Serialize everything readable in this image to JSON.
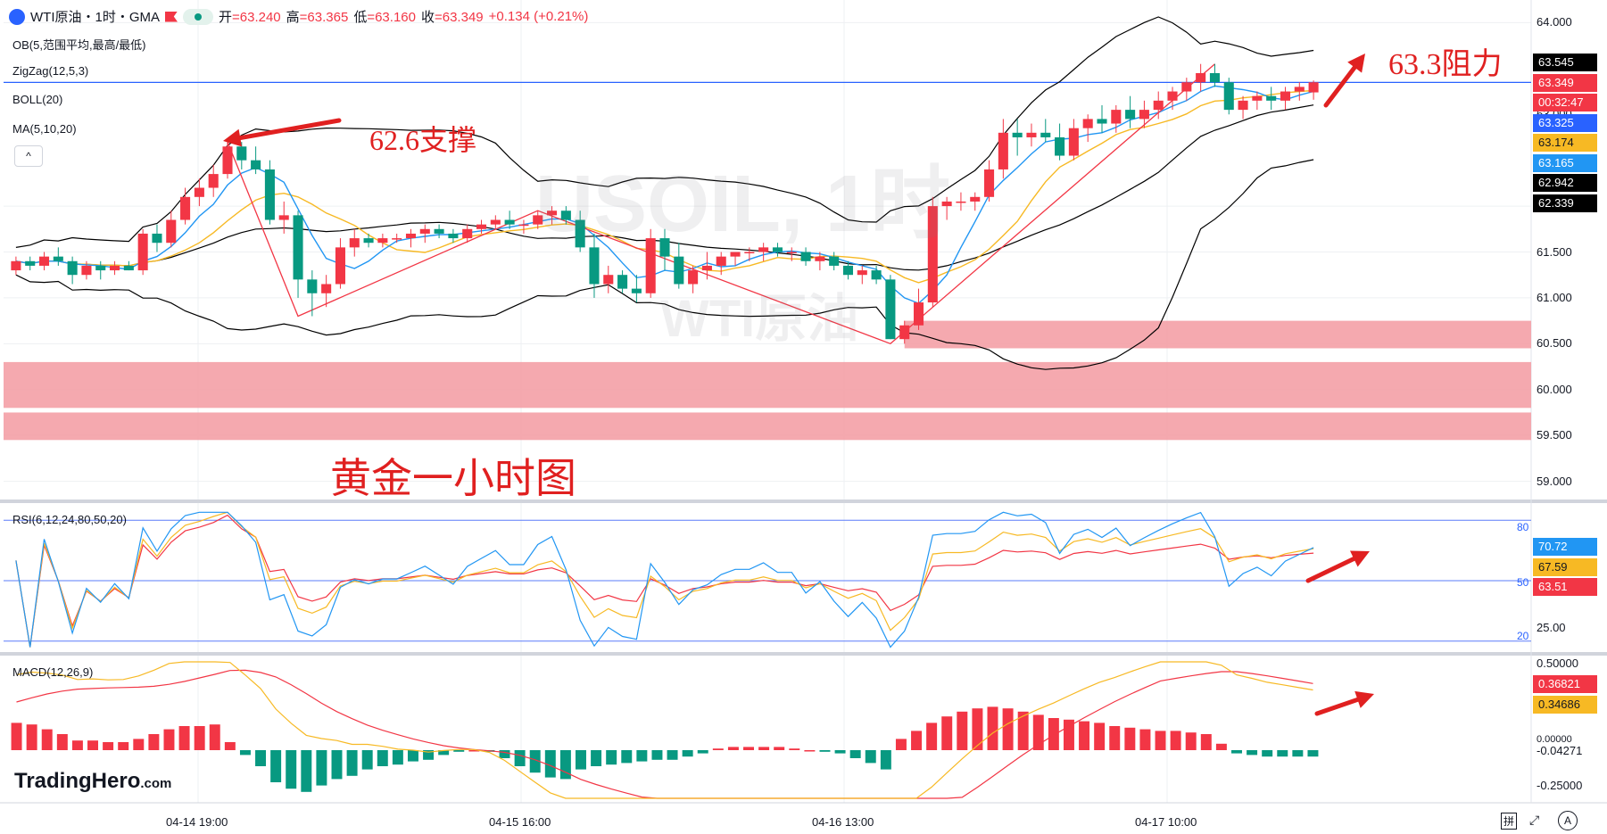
{
  "header": {
    "symbol": "WTI原油・1时・GMA",
    "open_label": "开",
    "open": "=63.240",
    "high_label": "高",
    "high": "=63.365",
    "low_label": "低",
    "low": "=63.160",
    "close_label": "收",
    "close": "=63.349",
    "change": "+0.134 (+0.21%)"
  },
  "indicators": {
    "ob": "OB(5,范围平均,最高/最低)",
    "zigzag": "ZigZag(12,5,3)",
    "boll": "BOLL(20)",
    "ma": "MA(5,10,20)",
    "rsi": "RSI(6,12,24,80,50,20)",
    "macd": "MACD(12,26,9)",
    "collapse_glyph": "^"
  },
  "annotations": {
    "support": "62.6支撑",
    "resistance": "63.3阻力",
    "chart_note": "黄金一小时图"
  },
  "watermark": {
    "main": "USOIL, 1时",
    "sub": "WTI原油"
  },
  "brand": {
    "name": "TradingHero",
    "suffix": ".com"
  },
  "price_axis": [
    "64.000",
    "63.000",
    "62.500",
    "62.000",
    "61.500",
    "61.000",
    "60.500",
    "60.000",
    "59.500",
    "59.000"
  ],
  "price_tags": [
    {
      "value": "63.545",
      "bg": "#000000",
      "fg": "#ffffff"
    },
    {
      "value": "63.349",
      "bg": "#f23645",
      "fg": "#ffffff"
    },
    {
      "value": "00:32:47",
      "bg": "#f23645",
      "fg": "#ffffff"
    },
    {
      "value": "63.325",
      "bg": "#2962ff",
      "fg": "#ffffff"
    },
    {
      "value": "63.174",
      "bg": "#f7b924",
      "fg": "#131722"
    },
    {
      "value": "63.165",
      "bg": "#2196f3",
      "fg": "#ffffff"
    },
    {
      "value": "62.942",
      "bg": "#000000",
      "fg": "#ffffff"
    },
    {
      "value": "62.339",
      "bg": "#000000",
      "fg": "#ffffff"
    }
  ],
  "rsi_axis": {
    "upper": "80",
    "mid": "50",
    "lower": "20",
    "tick": "25.00"
  },
  "rsi_tags": [
    {
      "value": "70.72",
      "bg": "#2196f3",
      "fg": "#ffffff"
    },
    {
      "value": "67.59",
      "bg": "#f7b924",
      "fg": "#131722"
    },
    {
      "value": "63.51",
      "bg": "#f23645",
      "fg": "#ffffff"
    }
  ],
  "macd_axis": {
    "top": "0.50000",
    "zero": "0.00000",
    "bottom": "-0.25000"
  },
  "macd_tags": [
    {
      "value": "0.36821",
      "bg": "#f23645",
      "fg": "#ffffff"
    },
    {
      "value": "0.34686",
      "bg": "#f7b924",
      "fg": "#131722"
    },
    {
      "value": "-0.04271",
      "bg": "#ffffff",
      "fg": "#131722"
    }
  ],
  "time_axis": [
    "04-14 19:00",
    "04-15 16:00",
    "04-16 13:00",
    "04-17 10:00"
  ],
  "corner_icons": {
    "layout": "拼",
    "fullscreen": "⤢",
    "auto": "A"
  },
  "colors": {
    "up": "#f23645",
    "down": "#089981",
    "zone": "#f4a0a6",
    "ma5": "#2196f3",
    "ma10": "#f7b924",
    "boll": "#000000",
    "zigzag": "#f23645",
    "grid": "#eef0f3"
  },
  "chart_data": [
    {
      "type": "candlestick",
      "title": "WTI原油・1时・GMA",
      "ylim": [
        58.85,
        64.15
      ],
      "x_ticks": [
        "04-14 19:00",
        "04-15 16:00",
        "04-16 13:00",
        "04-17 10:00"
      ],
      "ohlc": [
        [
          61.3,
          61.45,
          61.25,
          61.4
        ],
        [
          61.4,
          61.45,
          61.3,
          61.35
        ],
        [
          61.35,
          61.5,
          61.3,
          61.45
        ],
        [
          61.45,
          61.55,
          61.35,
          61.4
        ],
        [
          61.4,
          61.45,
          61.15,
          61.25
        ],
        [
          61.25,
          61.4,
          61.2,
          61.35
        ],
        [
          61.35,
          61.4,
          61.2,
          61.3
        ],
        [
          61.3,
          61.4,
          61.25,
          61.35
        ],
        [
          61.35,
          61.4,
          61.3,
          61.3
        ],
        [
          61.3,
          61.75,
          61.25,
          61.7
        ],
        [
          61.7,
          61.8,
          61.5,
          61.6
        ],
        [
          61.6,
          61.95,
          61.55,
          61.85
        ],
        [
          61.85,
          62.2,
          61.8,
          62.1
        ],
        [
          62.1,
          62.3,
          62.0,
          62.2
        ],
        [
          62.2,
          62.45,
          62.1,
          62.35
        ],
        [
          62.35,
          62.7,
          62.3,
          62.65
        ],
        [
          62.65,
          62.7,
          62.4,
          62.5
        ],
        [
          62.5,
          62.65,
          62.35,
          62.4
        ],
        [
          62.4,
          62.5,
          61.8,
          61.85
        ],
        [
          61.85,
          62.05,
          61.7,
          61.9
        ],
        [
          61.9,
          61.95,
          61.0,
          61.2
        ],
        [
          61.2,
          61.3,
          60.8,
          61.05
        ],
        [
          61.05,
          61.25,
          60.9,
          61.15
        ],
        [
          61.15,
          61.65,
          61.1,
          61.55
        ],
        [
          61.55,
          61.75,
          61.45,
          61.65
        ],
        [
          61.65,
          61.7,
          61.55,
          61.6
        ],
        [
          61.6,
          61.7,
          61.55,
          61.65
        ],
        [
          61.65,
          61.7,
          61.6,
          61.65
        ],
        [
          61.65,
          61.75,
          61.55,
          61.7
        ],
        [
          61.7,
          61.8,
          61.6,
          61.75
        ],
        [
          61.75,
          61.8,
          61.65,
          61.7
        ],
        [
          61.7,
          61.75,
          61.6,
          61.65
        ],
        [
          61.65,
          61.8,
          61.6,
          61.75
        ],
        [
          61.75,
          61.85,
          61.7,
          61.8
        ],
        [
          61.8,
          61.9,
          61.75,
          61.85
        ],
        [
          61.85,
          61.95,
          61.75,
          61.8
        ],
        [
          61.8,
          61.85,
          61.7,
          61.8
        ],
        [
          61.8,
          61.95,
          61.75,
          61.9
        ],
        [
          61.9,
          62.0,
          61.8,
          61.95
        ],
        [
          61.95,
          62.0,
          61.8,
          61.85
        ],
        [
          61.85,
          61.95,
          61.5,
          61.55
        ],
        [
          61.55,
          61.7,
          61.0,
          61.15
        ],
        [
          61.15,
          61.35,
          61.05,
          61.25
        ],
        [
          61.25,
          61.3,
          61.05,
          61.1
        ],
        [
          61.1,
          61.25,
          60.95,
          61.05
        ],
        [
          61.05,
          61.75,
          61.0,
          61.65
        ],
        [
          61.65,
          61.75,
          61.3,
          61.45
        ],
        [
          61.45,
          61.6,
          61.1,
          61.15
        ],
        [
          61.15,
          61.35,
          61.05,
          61.3
        ],
        [
          61.3,
          61.5,
          61.2,
          61.35
        ],
        [
          61.35,
          61.5,
          61.25,
          61.45
        ],
        [
          61.45,
          61.5,
          61.35,
          61.5
        ],
        [
          61.5,
          61.55,
          61.4,
          61.5
        ],
        [
          61.5,
          61.6,
          61.4,
          61.55
        ],
        [
          61.55,
          61.6,
          61.45,
          61.5
        ],
        [
          61.5,
          61.55,
          61.4,
          61.5
        ],
        [
          61.5,
          61.55,
          61.35,
          61.4
        ],
        [
          61.4,
          61.5,
          61.3,
          61.45
        ],
        [
          61.45,
          61.5,
          61.3,
          61.35
        ],
        [
          61.35,
          61.4,
          61.2,
          61.25
        ],
        [
          61.25,
          61.35,
          61.15,
          61.3
        ],
        [
          61.3,
          61.35,
          61.15,
          61.2
        ],
        [
          61.2,
          61.25,
          60.55,
          60.55
        ],
        [
          60.55,
          60.75,
          60.5,
          60.7
        ],
        [
          60.7,
          61.1,
          60.65,
          60.95
        ],
        [
          60.95,
          62.1,
          60.9,
          62.0
        ],
        [
          62.0,
          62.1,
          61.85,
          62.05
        ],
        [
          62.05,
          62.15,
          61.95,
          62.05
        ],
        [
          62.05,
          62.15,
          61.95,
          62.1
        ],
        [
          62.1,
          62.5,
          62.05,
          62.4
        ],
        [
          62.4,
          62.95,
          62.3,
          62.8
        ],
        [
          62.8,
          62.95,
          62.55,
          62.75
        ],
        [
          62.75,
          62.9,
          62.65,
          62.8
        ],
        [
          62.8,
          62.95,
          62.7,
          62.75
        ],
        [
          62.75,
          62.9,
          62.5,
          62.55
        ],
        [
          62.55,
          62.95,
          62.5,
          62.85
        ],
        [
          62.85,
          63.0,
          62.7,
          62.95
        ],
        [
          62.95,
          63.1,
          62.8,
          62.9
        ],
        [
          62.9,
          63.1,
          62.8,
          63.05
        ],
        [
          63.05,
          63.2,
          62.85,
          62.95
        ],
        [
          62.95,
          63.15,
          62.85,
          63.05
        ],
        [
          63.05,
          63.25,
          62.95,
          63.15
        ],
        [
          63.15,
          63.3,
          63.05,
          63.25
        ],
        [
          63.25,
          63.4,
          63.15,
          63.35
        ],
        [
          63.35,
          63.55,
          63.25,
          63.45
        ],
        [
          63.45,
          63.55,
          63.3,
          63.35
        ],
        [
          63.35,
          63.4,
          63.0,
          63.05
        ],
        [
          63.05,
          63.2,
          62.95,
          63.15
        ],
        [
          63.15,
          63.25,
          63.05,
          63.2
        ],
        [
          63.2,
          63.3,
          63.05,
          63.15
        ],
        [
          63.15,
          63.3,
          63.05,
          63.25
        ],
        [
          63.25,
          63.35,
          63.15,
          63.3
        ],
        [
          63.24,
          63.37,
          63.16,
          63.35
        ]
      ],
      "zones": [
        [
          60.45,
          60.75
        ],
        [
          59.8,
          60.3
        ],
        [
          59.45,
          59.75
        ]
      ],
      "support": 62.6,
      "resistance": 63.3,
      "current_price": 63.349
    },
    {
      "type": "line",
      "title": "RSI(6,12,24,80,50,20)",
      "ylim": [
        15,
        85
      ],
      "levels": [
        80,
        50,
        20
      ],
      "last": {
        "rsi6": 70.72,
        "rsi12": 67.59,
        "rsi24": 63.51
      }
    },
    {
      "type": "bar",
      "title": "MACD(12,26,9)",
      "ylim": [
        -0.3,
        0.55
      ],
      "last": {
        "dif": 0.36821,
        "dea": 0.34686,
        "hist": -0.04271
      },
      "hist": [
        0.17,
        0.16,
        0.13,
        0.1,
        0.06,
        0.06,
        0.05,
        0.05,
        0.07,
        0.1,
        0.13,
        0.15,
        0.15,
        0.16,
        0.05,
        -0.03,
        -0.1,
        -0.2,
        -0.24,
        -0.26,
        -0.22,
        -0.18,
        -0.16,
        -0.12,
        -0.1,
        -0.09,
        -0.07,
        -0.06,
        -0.03,
        -0.01,
        0.0,
        -0.01,
        -0.05,
        -0.1,
        -0.14,
        -0.17,
        -0.18,
        -0.12,
        -0.1,
        -0.09,
        -0.08,
        -0.07,
        -0.06,
        -0.06,
        -0.04,
        -0.02,
        0.01,
        0.02,
        0.02,
        0.02,
        0.02,
        0.01,
        0.0,
        -0.01,
        -0.02,
        -0.05,
        -0.08,
        -0.12,
        0.07,
        0.12,
        0.17,
        0.21,
        0.24,
        0.26,
        0.27,
        0.26,
        0.24,
        0.22,
        0.2,
        0.19,
        0.18,
        0.17,
        0.15,
        0.14,
        0.13,
        0.12,
        0.12,
        0.11,
        0.1,
        0.04,
        -0.02,
        -0.03,
        -0.04,
        -0.04,
        -0.04,
        -0.04
      ]
    }
  ]
}
